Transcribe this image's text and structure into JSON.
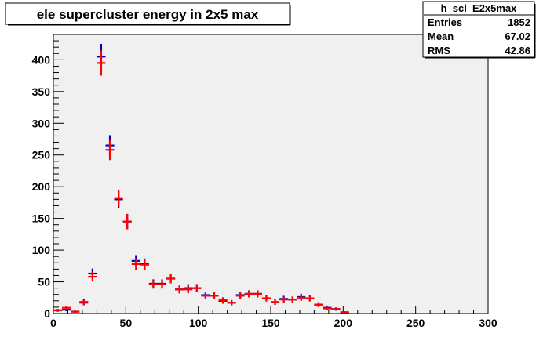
{
  "chart_data": {
    "type": "scatter",
    "title": "ele supercluster energy in 2x5 max",
    "xlim": [
      0,
      300
    ],
    "ylim": [
      0,
      440
    ],
    "x_ticks": [
      0,
      50,
      100,
      150,
      200,
      250,
      300
    ],
    "y_ticks": [
      0,
      50,
      100,
      150,
      200,
      250,
      300,
      350,
      400
    ],
    "bin_width": 6,
    "grid": false,
    "stats_box": {
      "name": "h_scl_E2x5max",
      "rows": [
        {
          "label": "Entries",
          "value": "1852"
        },
        {
          "label": "Mean",
          "value": "67.02"
        },
        {
          "label": "RMS",
          "value": "42.86"
        }
      ]
    },
    "series": [
      {
        "color": "#0000cc",
        "x": [
          3,
          9,
          15,
          21,
          27,
          33,
          39,
          45,
          51,
          57,
          63,
          69,
          75,
          81,
          87,
          93,
          99,
          105,
          111,
          117,
          123,
          129,
          135,
          141,
          147,
          153,
          159,
          165,
          171,
          177,
          183,
          189,
          195,
          201
        ],
        "y": [
          5,
          6,
          3,
          18,
          63,
          405,
          265,
          180,
          145,
          83,
          78,
          47,
          47,
          55,
          38,
          40,
          40,
          29,
          28,
          20,
          17,
          29,
          31,
          31,
          24,
          18,
          23,
          22,
          26,
          24,
          14,
          9,
          7,
          2
        ]
      },
      {
        "color": "#ff0000",
        "x": [
          3,
          9,
          15,
          21,
          27,
          33,
          39,
          45,
          51,
          57,
          63,
          69,
          75,
          81,
          87,
          93,
          99,
          105,
          111,
          117,
          123,
          129,
          135,
          141,
          147,
          153,
          159,
          165,
          171,
          177,
          183,
          189,
          195,
          201
        ],
        "y": [
          5,
          9,
          3,
          17,
          58,
          395,
          258,
          182,
          145,
          78,
          77,
          46,
          46,
          55,
          38,
          38,
          40,
          28,
          28,
          21,
          17,
          28,
          31,
          31,
          24,
          18,
          22,
          22,
          25,
          24,
          14,
          8,
          7,
          2
        ]
      }
    ]
  }
}
